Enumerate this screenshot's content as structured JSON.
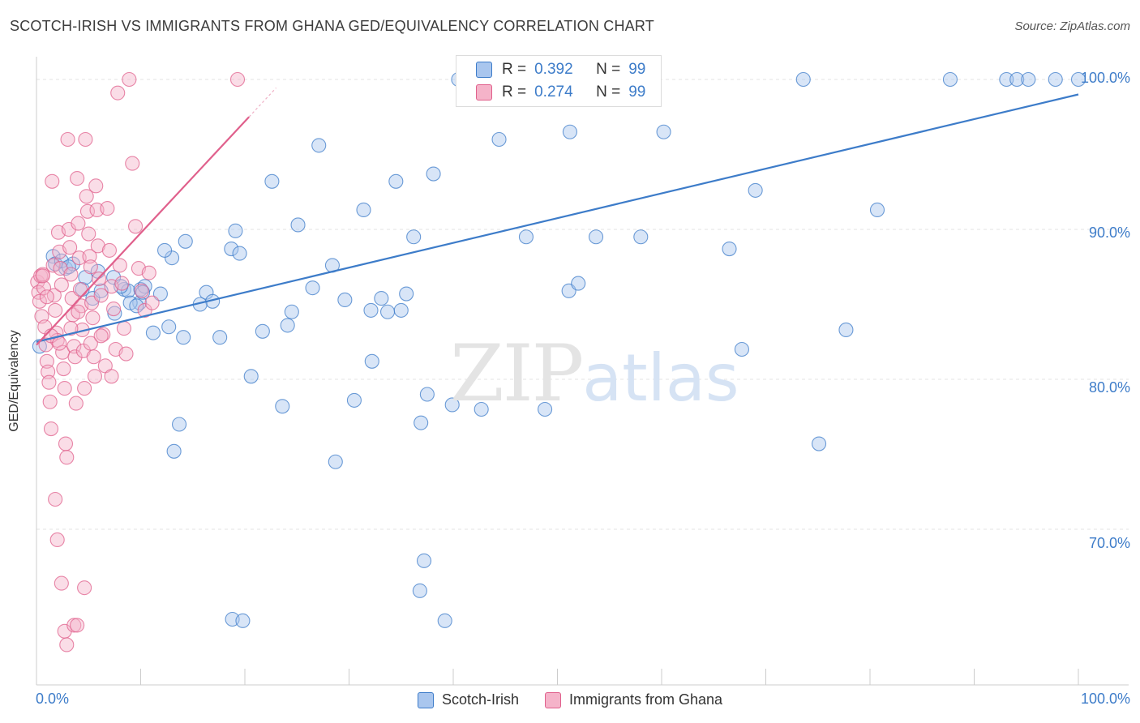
{
  "title": "SCOTCH-IRISH VS IMMIGRANTS FROM GHANA GED/EQUIVALENCY CORRELATION CHART",
  "source": "Source: ZipAtlas.com",
  "watermark": {
    "zip": "ZIP",
    "atlas": "atlas"
  },
  "colors": {
    "blue": "#3d7cc9",
    "blue_fill": "#a9c6ee",
    "pink": "#e0608c",
    "pink_fill": "#f5b3c9",
    "grid": "#e3e3e3"
  },
  "legend": {
    "series1": {
      "r_label": "R =",
      "r_value": "0.392",
      "n_label": "N =",
      "n_value": "99"
    },
    "series2": {
      "r_label": "R =",
      "r_value": "0.274",
      "n_label": "N =",
      "n_value": "99"
    }
  },
  "bottom_legend": {
    "series1": "Scotch-Irish",
    "series2": "Immigrants from Ghana"
  },
  "chart_data": {
    "type": "scatter",
    "title": "SCOTCH-IRISH VS IMMIGRANTS FROM GHANA GED/EQUIVALENCY CORRELATION CHART",
    "xlabel": "",
    "ylabel": "GED/Equivalency",
    "xlim": [
      0,
      100
    ],
    "ylim": [
      60,
      101.5
    ],
    "x_tick_labels": [
      "0.0%",
      "100.0%"
    ],
    "y_ticks": [
      70,
      80,
      90,
      100
    ],
    "y_tick_labels": [
      "70.0%",
      "80.0%",
      "90.0%",
      "100.0%"
    ],
    "grid": true,
    "series": [
      {
        "name": "Scotch-Irish",
        "color": "#3d7cc9",
        "trend": {
          "x": [
            0,
            100
          ],
          "y": [
            82.5,
            99.0
          ]
        },
        "points": [
          [
            0.3,
            82.2
          ],
          [
            1.6,
            88.2
          ],
          [
            1.8,
            87.7
          ],
          [
            2.8,
            87.4
          ],
          [
            3.5,
            87.7
          ],
          [
            4.4,
            86.0
          ],
          [
            4.7,
            86.8
          ],
          [
            5.4,
            85.4
          ],
          [
            7.4,
            86.8
          ],
          [
            8.4,
            86.0
          ],
          [
            9.9,
            85.1
          ],
          [
            7.5,
            84.4
          ],
          [
            8.8,
            85.9
          ],
          [
            9.0,
            85.1
          ],
          [
            11.2,
            83.1
          ],
          [
            10.0,
            86.0
          ],
          [
            10.4,
            86.2
          ],
          [
            11.9,
            85.7
          ],
          [
            10.2,
            85.8
          ],
          [
            13.0,
            88.1
          ],
          [
            12.3,
            88.6
          ],
          [
            14.3,
            89.2
          ],
          [
            16.3,
            85.8
          ],
          [
            16.9,
            85.2
          ],
          [
            14.1,
            82.8
          ],
          [
            15.7,
            85.0
          ],
          [
            17.6,
            82.8
          ],
          [
            18.7,
            88.7
          ],
          [
            19.5,
            88.4
          ],
          [
            19.1,
            89.9
          ],
          [
            20.6,
            80.2
          ],
          [
            21.7,
            83.2
          ],
          [
            22.6,
            93.2
          ],
          [
            23.6,
            78.2
          ],
          [
            24.1,
            83.6
          ],
          [
            24.5,
            84.5
          ],
          [
            25.1,
            90.3
          ],
          [
            26.5,
            86.1
          ],
          [
            27.1,
            95.6
          ],
          [
            28.4,
            87.6
          ],
          [
            28.7,
            74.5
          ],
          [
            29.6,
            85.3
          ],
          [
            30.5,
            78.6
          ],
          [
            31.4,
            91.3
          ],
          [
            32.1,
            84.6
          ],
          [
            32.2,
            81.2
          ],
          [
            33.1,
            85.4
          ],
          [
            33.7,
            84.5
          ],
          [
            34.5,
            93.2
          ],
          [
            35.0,
            84.6
          ],
          [
            35.5,
            85.7
          ],
          [
            36.2,
            89.5
          ],
          [
            36.9,
            77.1
          ],
          [
            37.5,
            79.0
          ],
          [
            38.1,
            93.7
          ],
          [
            39.9,
            78.3
          ],
          [
            40.5,
            100.0
          ],
          [
            42.7,
            78.0
          ],
          [
            43.1,
            100.0
          ],
          [
            44.4,
            96.0
          ],
          [
            45.3,
            100.0
          ],
          [
            47.0,
            89.5
          ],
          [
            48.8,
            78.0
          ],
          [
            49.8,
            100.0
          ],
          [
            51.1,
            85.9
          ],
          [
            51.2,
            96.5
          ],
          [
            52.0,
            86.4
          ],
          [
            53.7,
            89.5
          ],
          [
            55.3,
            100.0
          ],
          [
            56.9,
            100.0
          ],
          [
            58.0,
            89.5
          ],
          [
            60.2,
            96.5
          ],
          [
            66.5,
            88.7
          ],
          [
            67.7,
            82.0
          ],
          [
            69.0,
            92.6
          ],
          [
            75.1,
            75.7
          ],
          [
            77.7,
            83.3
          ],
          [
            80.7,
            91.3
          ],
          [
            87.7,
            100.0
          ],
          [
            93.1,
            100.0
          ],
          [
            94.1,
            100.0
          ],
          [
            97.8,
            100.0
          ],
          [
            13.2,
            75.2
          ],
          [
            13.7,
            77.0
          ],
          [
            18.8,
            64.0
          ],
          [
            19.8,
            63.9
          ],
          [
            37.2,
            67.9
          ],
          [
            36.8,
            65.9
          ],
          [
            39.2,
            63.9
          ],
          [
            73.6,
            100.0
          ],
          [
            95.2,
            100.0
          ],
          [
            100.0,
            100.0
          ],
          [
            2.4,
            87.9
          ],
          [
            3.1,
            87.5
          ],
          [
            5.9,
            87.2
          ],
          [
            6.2,
            85.9
          ],
          [
            8.1,
            86.2
          ],
          [
            9.6,
            84.9
          ],
          [
            12.7,
            83.5
          ]
        ]
      },
      {
        "name": "Immigrants from Ghana",
        "color": "#e0608c",
        "trend": {
          "x": [
            0,
            20.4
          ],
          "y": [
            82.3,
            97.5
          ]
        },
        "points": [
          [
            0.1,
            86.5
          ],
          [
            0.2,
            85.8
          ],
          [
            0.3,
            85.2
          ],
          [
            0.4,
            86.9
          ],
          [
            0.5,
            84.2
          ],
          [
            0.6,
            87.0
          ],
          [
            0.7,
            86.1
          ],
          [
            0.8,
            83.5
          ],
          [
            0.9,
            82.3
          ],
          [
            1.0,
            81.2
          ],
          [
            1.1,
            80.5
          ],
          [
            1.2,
            79.8
          ],
          [
            1.3,
            78.5
          ],
          [
            1.4,
            76.7
          ],
          [
            1.5,
            93.2
          ],
          [
            1.6,
            87.6
          ],
          [
            1.7,
            85.6
          ],
          [
            1.8,
            84.6
          ],
          [
            1.9,
            83.1
          ],
          [
            2.0,
            82.6
          ],
          [
            2.1,
            89.8
          ],
          [
            2.2,
            88.5
          ],
          [
            2.3,
            87.4
          ],
          [
            2.4,
            86.3
          ],
          [
            2.5,
            81.8
          ],
          [
            2.6,
            80.7
          ],
          [
            2.7,
            79.4
          ],
          [
            2.8,
            75.7
          ],
          [
            2.9,
            74.8
          ],
          [
            3.0,
            96.0
          ],
          [
            3.1,
            90.0
          ],
          [
            3.2,
            88.8
          ],
          [
            3.3,
            87.0
          ],
          [
            3.4,
            85.4
          ],
          [
            3.5,
            84.3
          ],
          [
            3.6,
            82.2
          ],
          [
            3.7,
            81.5
          ],
          [
            3.8,
            78.4
          ],
          [
            3.9,
            93.4
          ],
          [
            4.0,
            90.4
          ],
          [
            4.1,
            88.1
          ],
          [
            4.2,
            86.0
          ],
          [
            4.3,
            84.9
          ],
          [
            4.4,
            83.3
          ],
          [
            4.5,
            81.9
          ],
          [
            4.6,
            79.4
          ],
          [
            4.7,
            96.0
          ],
          [
            4.8,
            92.2
          ],
          [
            4.9,
            91.2
          ],
          [
            5.0,
            89.7
          ],
          [
            5.1,
            88.2
          ],
          [
            5.2,
            87.5
          ],
          [
            5.3,
            85.1
          ],
          [
            5.4,
            84.1
          ],
          [
            5.5,
            81.5
          ],
          [
            5.6,
            80.2
          ],
          [
            5.7,
            92.9
          ],
          [
            5.8,
            91.3
          ],
          [
            5.9,
            88.9
          ],
          [
            6.0,
            86.7
          ],
          [
            6.2,
            85.6
          ],
          [
            6.4,
            83.0
          ],
          [
            6.6,
            80.9
          ],
          [
            6.8,
            91.4
          ],
          [
            7.0,
            88.6
          ],
          [
            7.2,
            86.2
          ],
          [
            7.4,
            84.7
          ],
          [
            7.6,
            82.0
          ],
          [
            7.8,
            99.1
          ],
          [
            8.0,
            87.6
          ],
          [
            8.2,
            86.4
          ],
          [
            8.4,
            83.4
          ],
          [
            8.6,
            81.7
          ],
          [
            8.9,
            100.0
          ],
          [
            9.2,
            94.4
          ],
          [
            9.5,
            90.2
          ],
          [
            9.8,
            87.4
          ],
          [
            10.1,
            85.9
          ],
          [
            10.4,
            84.6
          ],
          [
            10.8,
            87.1
          ],
          [
            11.1,
            85.1
          ],
          [
            1.8,
            72.0
          ],
          [
            2.0,
            69.3
          ],
          [
            2.4,
            66.4
          ],
          [
            2.7,
            63.2
          ],
          [
            2.9,
            62.3
          ],
          [
            3.6,
            63.6
          ],
          [
            3.9,
            63.6
          ],
          [
            4.6,
            66.1
          ],
          [
            19.3,
            100.0
          ],
          [
            0.6,
            86.9
          ],
          [
            1.0,
            85.5
          ],
          [
            1.4,
            82.9
          ],
          [
            2.2,
            82.4
          ],
          [
            3.3,
            83.4
          ],
          [
            4.0,
            84.5
          ],
          [
            5.2,
            82.4
          ],
          [
            6.2,
            82.9
          ],
          [
            7.2,
            80.2
          ]
        ]
      }
    ]
  }
}
